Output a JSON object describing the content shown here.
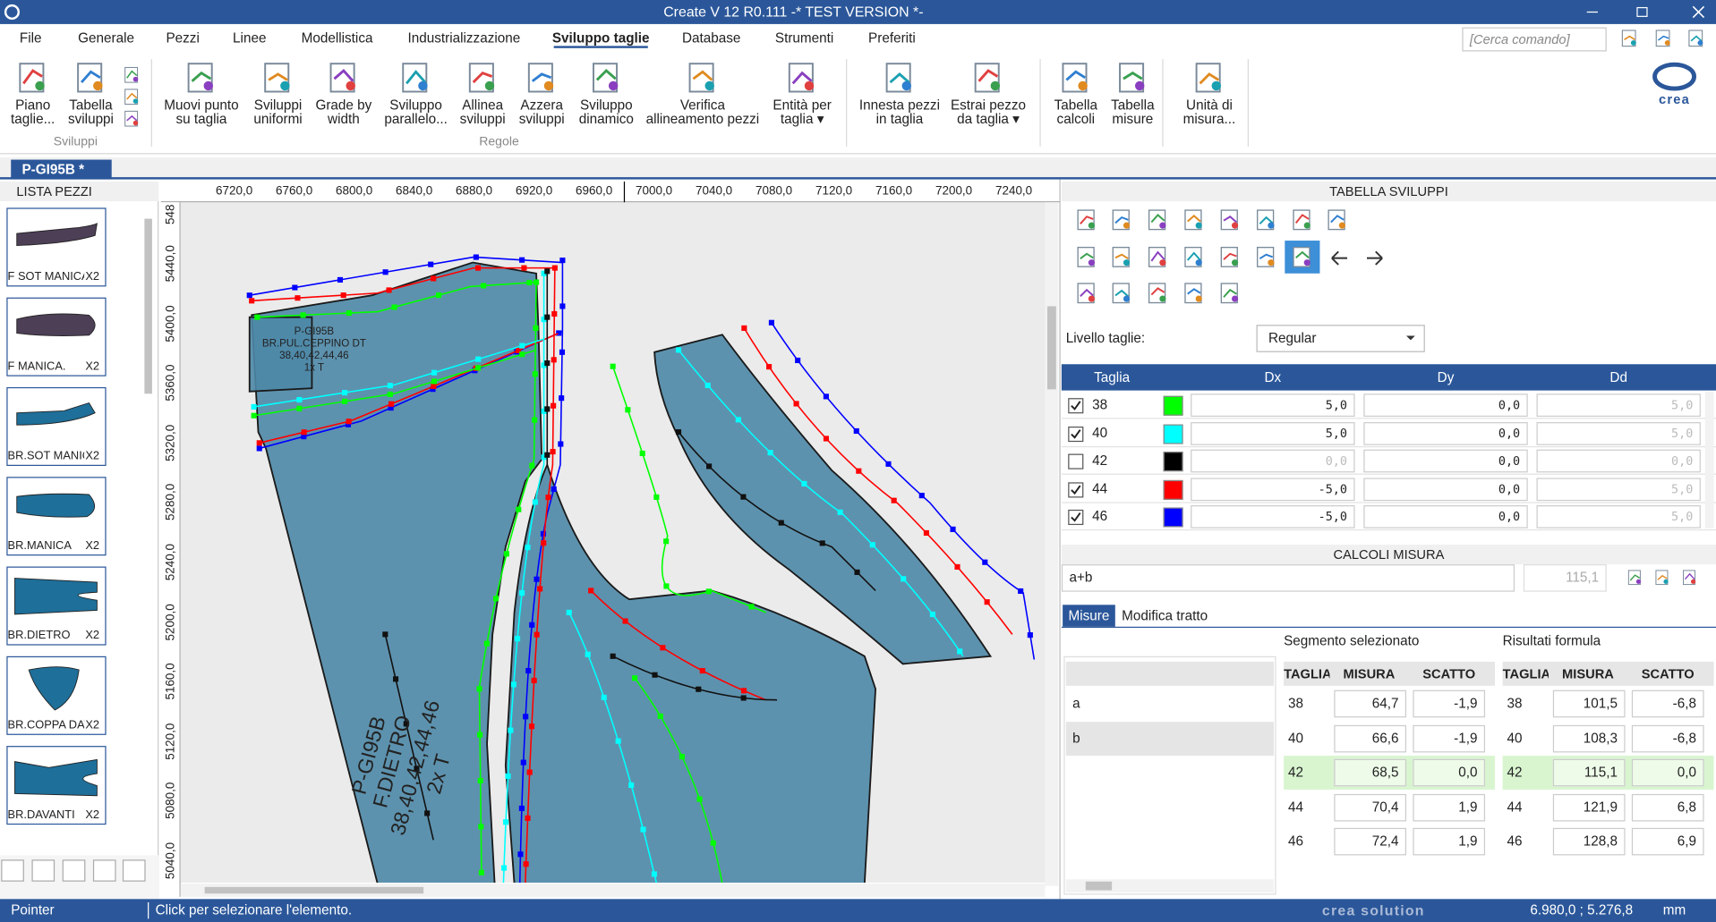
{
  "title": "Create V 12 R0.111 -* TEST VERSION *-",
  "menu": [
    "File",
    "Generale",
    "Pezzi",
    "Linee",
    "Modellistica",
    "Industrializzazione",
    "Sviluppo taglie",
    "Database",
    "Strumenti",
    "Preferiti"
  ],
  "search_placeholder": "[Cerca comando]",
  "logo": "crea",
  "ribbon": {
    "buttons": [
      "Piano\ntaglie...",
      "Tabella\nsviluppi",
      "Muovi punto\nsu taglia",
      "Sviluppi\nuniformi",
      "Grade by\nwidth",
      "Sviluppo\nparallelo...",
      "Allinea\nsviluppi",
      "Azzera\nsviluppi",
      "Sviluppo\ndinamico",
      "Verifica\nallineamento pezzi",
      "Entità per\ntaglia ▾",
      "Innesta pezzi\nin taglia",
      "Estrai pezzo\nda taglia ▾",
      "Tabella\ncalcoli",
      "Tabella\nmisure",
      "Unità di\nmisura..."
    ],
    "groups": [
      "Sviluppi",
      "Regole"
    ]
  },
  "doc_tab": "P-GI95B *",
  "lista_pezzi": {
    "title": "LISTA PEZZI",
    "items": [
      {
        "name": "F SOT MANICA.",
        "qty": "X2"
      },
      {
        "name": "F MANICA.",
        "qty": "X2"
      },
      {
        "name": "BR.SOT MANICA",
        "qty": "X2"
      },
      {
        "name": "BR.MANICA",
        "qty": "X2"
      },
      {
        "name": "BR.DIETRO",
        "qty": "X2"
      },
      {
        "name": "BR.COPPA DAV",
        "qty": "X2"
      },
      {
        "name": "BR.DAVANTI",
        "qty": "X2"
      }
    ]
  },
  "ruler": {
    "x": [
      "6720,0",
      "6760,0",
      "6800,0",
      "6840,0",
      "6880,0",
      "6920,0",
      "6960,0",
      "7000,0",
      "7040,0",
      "7080,0",
      "7120,0",
      "7160,0",
      "7200,0",
      "7240,0"
    ],
    "y": [
      "548",
      "5440,0",
      "5400,0",
      "5360,0",
      "5320,0",
      "5280,0",
      "5240,0",
      "5200,0",
      "5160,0",
      "5120,0",
      "5080,0",
      "5040,0"
    ]
  },
  "canvas_labels": {
    "main": [
      "P-GI95B",
      "F.DIETRO",
      "38,40,42,44,46",
      "2x T"
    ],
    "small": [
      "P-GI95B",
      "BR.PUL.CEPPINO DT",
      "38,40,42,44,46",
      "1x T"
    ]
  },
  "tabella_sviluppi": {
    "title": "TABELLA SVILUPPI",
    "livello_label": "Livello taglie:",
    "livello_value": "Regular",
    "columns": [
      "Taglia",
      "Dx",
      "Dy",
      "Dd"
    ],
    "rows": [
      {
        "checked": true,
        "taglia": "38",
        "color": "#00ff00",
        "dx": "5,0",
        "dy": "0,0",
        "dd": "5,0"
      },
      {
        "checked": true,
        "taglia": "40",
        "color": "#00ffff",
        "dx": "5,0",
        "dy": "0,0",
        "dd": "5,0"
      },
      {
        "checked": false,
        "taglia": "42",
        "color": "#000000",
        "dx": "0,0",
        "dy": "0,0",
        "dd": "0,0"
      },
      {
        "checked": true,
        "taglia": "44",
        "color": "#ff0000",
        "dx": "-5,0",
        "dy": "0,0",
        "dd": "5,0"
      },
      {
        "checked": true,
        "taglia": "46",
        "color": "#0000ff",
        "dx": "-5,0",
        "dy": "0,0",
        "dd": "5,0"
      }
    ]
  },
  "calcoli_misura": {
    "title": "CALCOLI MISURA",
    "formula": "a+b",
    "result": "115,1",
    "tabs": [
      "Misure",
      "Modifica tratto"
    ],
    "segmento_title": "Segmento selezionato",
    "risultati_title": "Risultati formula",
    "names": [
      "a",
      "b"
    ],
    "segment_columns": [
      "TAGLIA",
      "MISURA",
      "SCATTO"
    ],
    "segment_rows": [
      [
        "38",
        "64,7",
        "-1,9"
      ],
      [
        "40",
        "66,6",
        "-1,9"
      ],
      [
        "42",
        "68,5",
        "0,0"
      ],
      [
        "44",
        "70,4",
        "1,9"
      ],
      [
        "46",
        "72,4",
        "1,9"
      ]
    ],
    "result_columns": [
      "TAGLIA",
      "MISURA",
      "SCATTO"
    ],
    "result_rows": [
      [
        "38",
        "101,5",
        "-6,8"
      ],
      [
        "40",
        "108,3",
        "-6,8"
      ],
      [
        "42",
        "115,1",
        "0,0"
      ],
      [
        "44",
        "121,9",
        "6,8"
      ],
      [
        "46",
        "128,8",
        "6,9"
      ]
    ]
  },
  "status": {
    "mode": "Pointer",
    "message": "Click per selezionare l'elemento.",
    "brand": "crea solution",
    "coords": "6.980,0 ; 5.276,8",
    "unit": "mm"
  }
}
